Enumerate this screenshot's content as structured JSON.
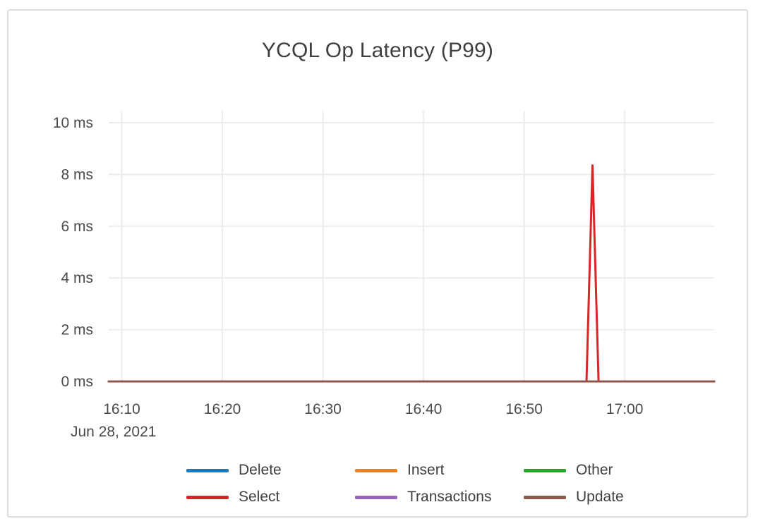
{
  "card": {
    "background": "#ffffff",
    "border_color": "#dcdcdc"
  },
  "chart_data": {
    "type": "line",
    "title": "YCQL Op Latency (P99)",
    "grid": true,
    "grid_color": "#ececec",
    "legend_position": "bottom",
    "x_axis": {
      "date_label": "Jun 28, 2021",
      "unit": "minutes after 16:00 on Jun 28, 2021",
      "range": [
        8.7,
        68.9
      ],
      "tick_values": [
        10,
        20,
        30,
        40,
        50,
        60
      ],
      "tick_labels": [
        "16:10",
        "16:20",
        "16:30",
        "16:40",
        "16:50",
        "17:00"
      ]
    },
    "y_axis": {
      "unit": "ms",
      "range": [
        0,
        10
      ],
      "tick_values": [
        0,
        2,
        4,
        6,
        8,
        10
      ],
      "tick_labels": [
        "0 ms",
        "2 ms",
        "4 ms",
        "6 ms",
        "8 ms",
        "10 ms"
      ]
    },
    "series": [
      {
        "name": "Delete",
        "color": "#1f77b4",
        "points": [
          [
            8.7,
            0
          ],
          [
            68.9,
            0
          ]
        ]
      },
      {
        "name": "Insert",
        "color": "#ff7f0e",
        "points": [
          [
            8.7,
            0
          ],
          [
            68.9,
            0
          ]
        ]
      },
      {
        "name": "Other",
        "color": "#2ca02c",
        "points": [
          [
            8.7,
            0
          ],
          [
            68.9,
            0
          ]
        ]
      },
      {
        "name": "Select",
        "color": "#d62728",
        "points": [
          [
            8.7,
            0
          ],
          [
            56.2,
            0
          ],
          [
            56.8,
            8.35
          ],
          [
            57.4,
            0
          ],
          [
            68.9,
            0
          ]
        ]
      },
      {
        "name": "Transactions",
        "color": "#9467bd",
        "points": [
          [
            8.7,
            0
          ],
          [
            68.9,
            0
          ]
        ]
      },
      {
        "name": "Update",
        "color": "#8c564b",
        "points": [
          [
            8.7,
            0
          ],
          [
            68.9,
            0
          ]
        ]
      }
    ]
  }
}
